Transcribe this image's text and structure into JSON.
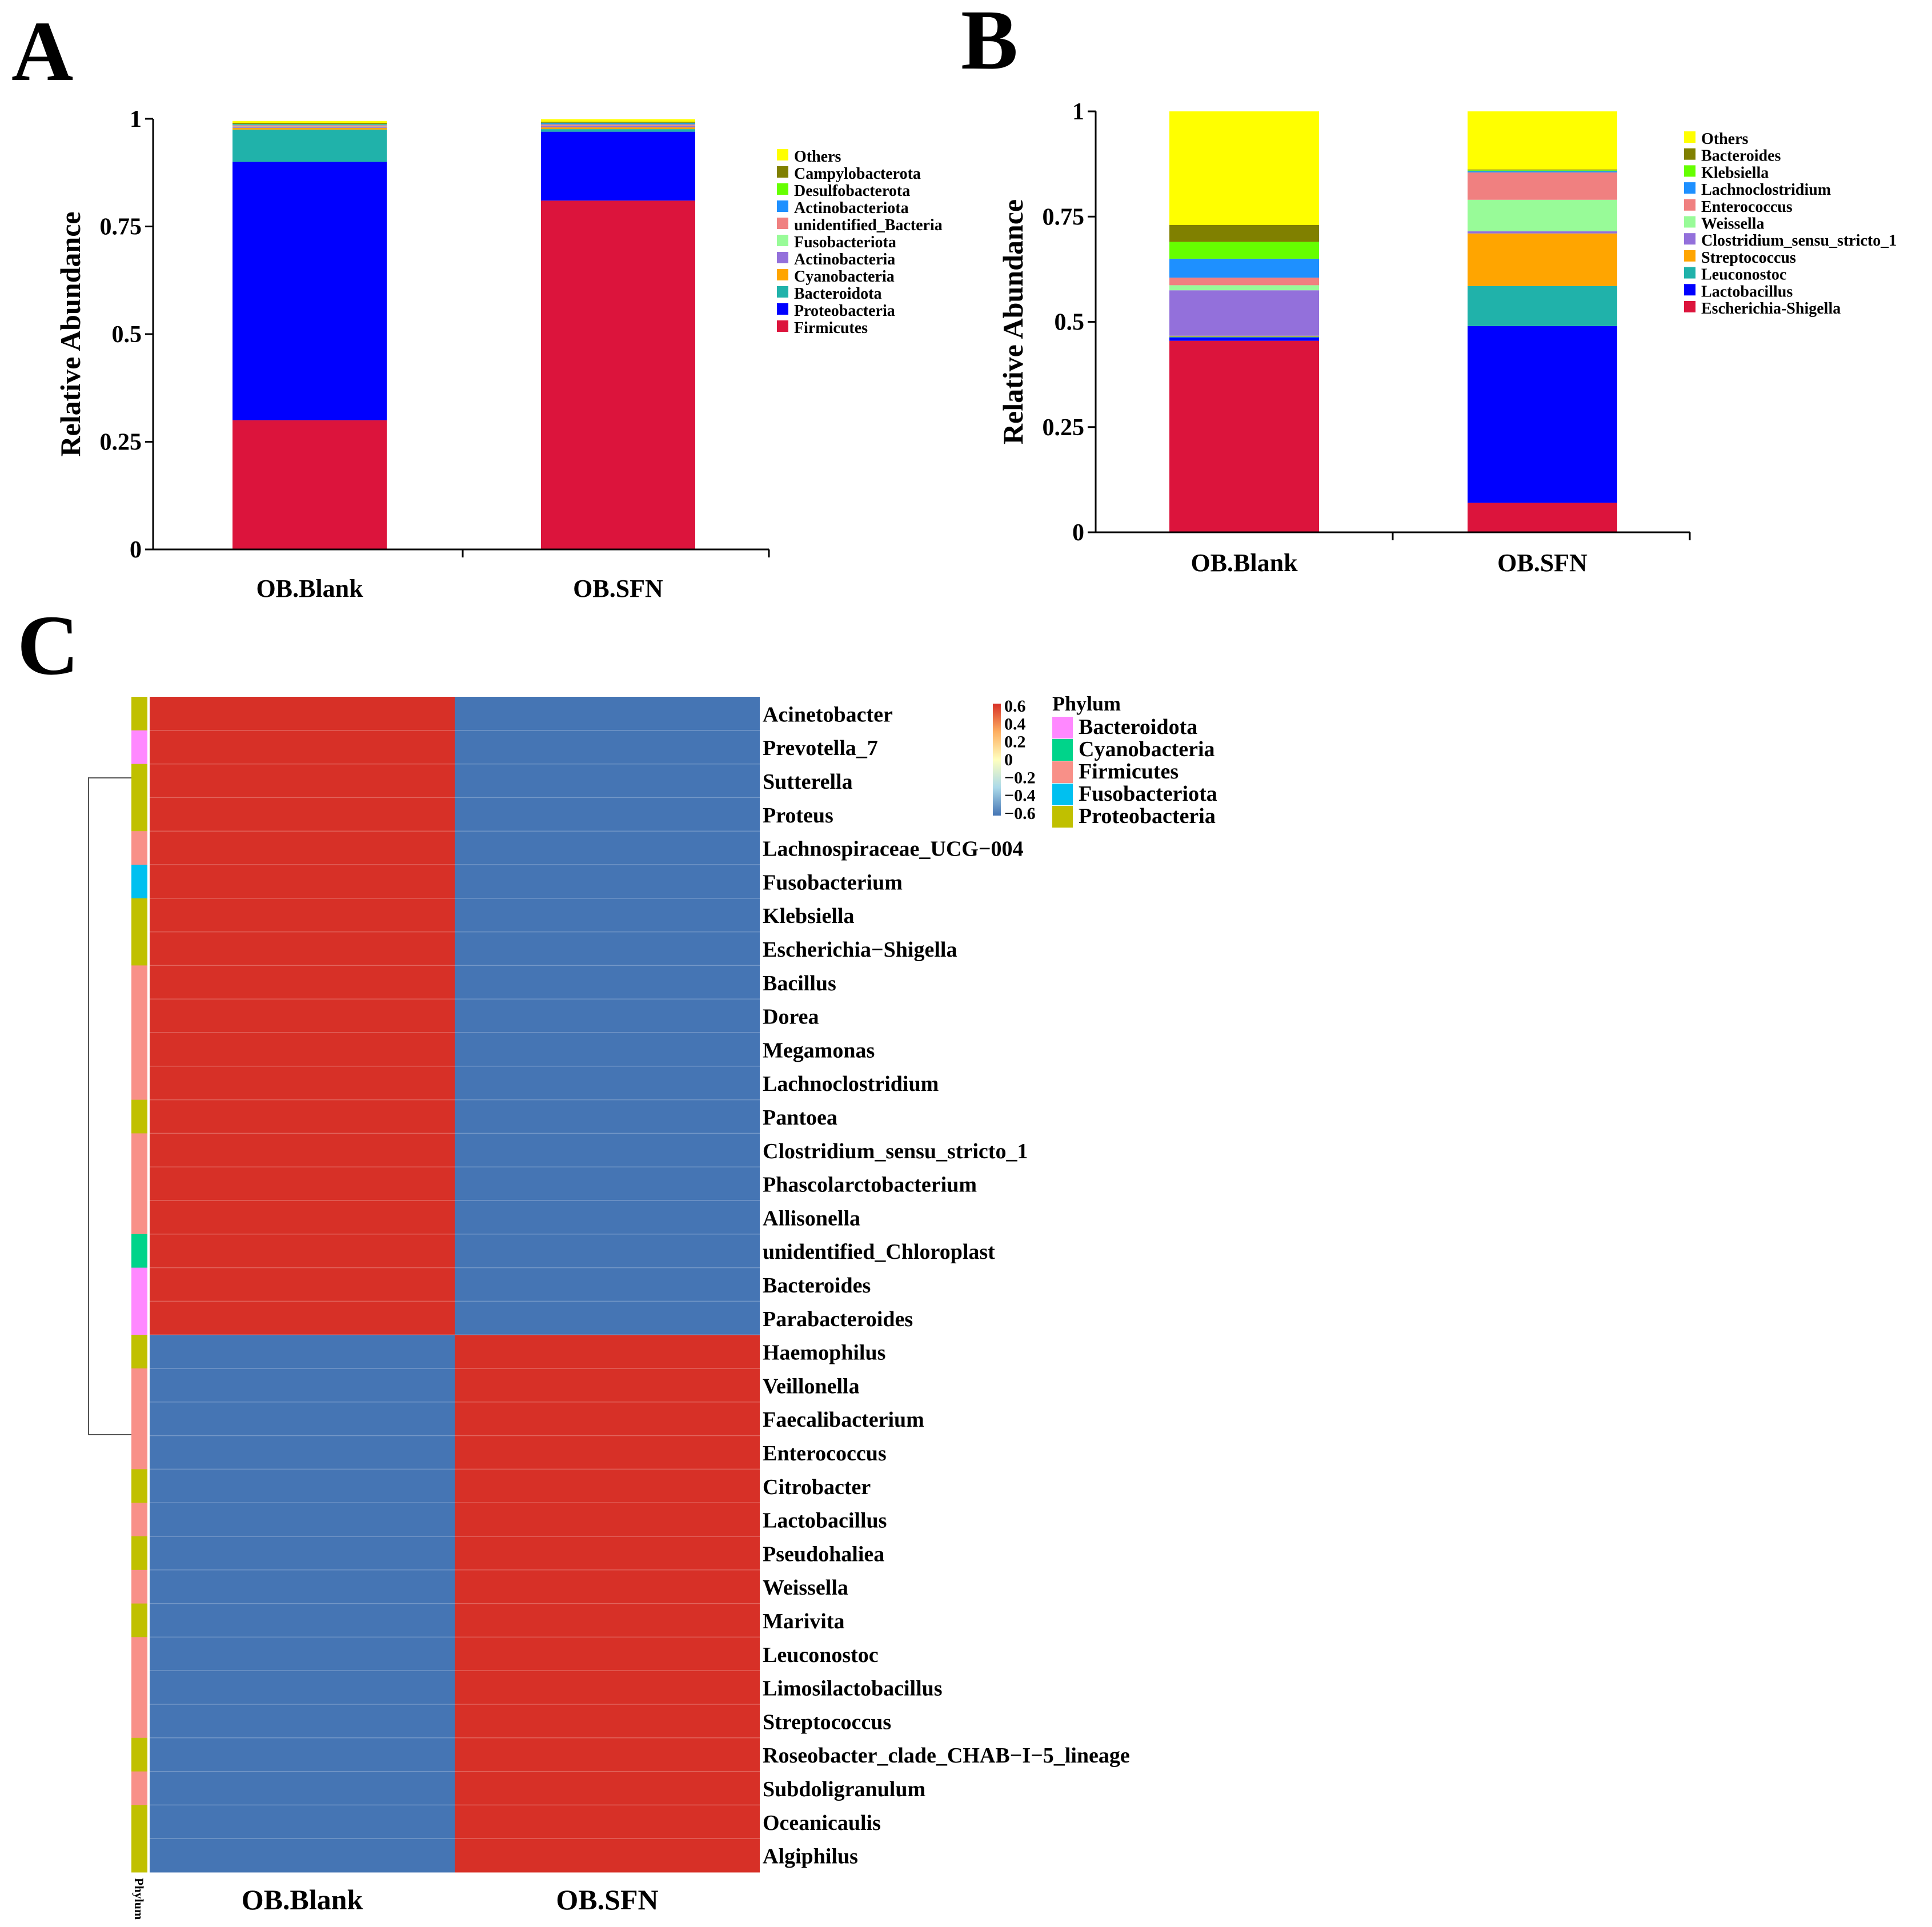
{
  "colors": {
    "Others": "#ffff00",
    "Campylobacterota": "#808000",
    "Desulfobacterota": "#66ff00",
    "Actinobacteriota": "#1e90ff",
    "unidentified_Bacteria": "#f08080",
    "Fusobacteriota": "#98fb98",
    "Actinobacteria": "#9370db",
    "Cyanobacteria": "#ffa500",
    "Bacteroidota": "#20b2aa",
    "Proteobacteria": "#0000ff",
    "Firmicutes": "#dc143c",
    "Bacteroides": "#808000",
    "Klebsiella": "#66ff00",
    "Lachnoclostridium": "#1e90ff",
    "Enterococcus": "#f08080",
    "Weissella": "#98fb98",
    "Clostridium_sensu_stricto_1": "#9370db",
    "Streptococcus": "#ffa500",
    "Leuconostoc": "#20b2aa",
    "Lactobacillus": "#0000ff",
    "Escherichia-Shigella": "#dc143c",
    "heat_high": "#d73027",
    "heat_low": "#4575b4",
    "phylum_Bacteroidota": "#ff88ff",
    "phylum_Cyanobacteria": "#00d48a",
    "phylum_Firmicutes": "#f89088",
    "phylum_Fusobacteriota": "#00c0f0",
    "phylum_Proteobacteria": "#c0c000"
  },
  "chart_data": [
    {
      "panel": "A",
      "type": "bar",
      "stacked": true,
      "categories": [
        "OB.Blank",
        "OB.SFN"
      ],
      "ylabel": "Relative Abundance",
      "ylim": [
        0,
        1
      ],
      "yticks": [
        "0",
        "0.25",
        "0.5",
        "0.75",
        "1"
      ],
      "legend_position": "right",
      "legend_order": [
        "Others",
        "Campylobacterota",
        "Desulfobacterota",
        "Actinobacteriota",
        "unidentified_Bacteria",
        "Fusobacteriota",
        "Actinobacteria",
        "Cyanobacteria",
        "Bacteroidota",
        "Proteobacteria",
        "Firmicutes"
      ],
      "series": [
        {
          "name": "Firmicutes",
          "values": [
            0.3,
            0.81
          ]
        },
        {
          "name": "Proteobacteria",
          "values": [
            0.6,
            0.16
          ]
        },
        {
          "name": "Bacteroidota",
          "values": [
            0.075,
            0.006
          ]
        },
        {
          "name": "Cyanobacteria",
          "values": [
            0.004,
            0.004
          ]
        },
        {
          "name": "Actinobacteria",
          "values": [
            0.002,
            0.003
          ]
        },
        {
          "name": "Fusobacteriota",
          "values": [
            0.001,
            0.001
          ]
        },
        {
          "name": "unidentified_Bacteria",
          "values": [
            0.003,
            0.003
          ]
        },
        {
          "name": "Actinobacteriota",
          "values": [
            0.002,
            0.003
          ]
        },
        {
          "name": "Desulfobacterota",
          "values": [
            0.001,
            0.001
          ]
        },
        {
          "name": "Campylobacterota",
          "values": [
            0.002,
            0.002
          ]
        },
        {
          "name": "Others",
          "values": [
            0.005,
            0.006
          ]
        }
      ]
    },
    {
      "panel": "B",
      "type": "bar",
      "stacked": true,
      "categories": [
        "OB.Blank",
        "OB.SFN"
      ],
      "ylabel": "Relative Abundance",
      "ylim": [
        0,
        1
      ],
      "yticks": [
        "0",
        "0.25",
        "0.5",
        "0.75",
        "1"
      ],
      "legend_position": "right",
      "legend_order": [
        "Others",
        "Bacteroides",
        "Klebsiella",
        "Lachnoclostridium",
        "Enterococcus",
        "Weissella",
        "Clostridium_sensu_stricto_1",
        "Streptococcus",
        "Leuconostoc",
        "Lactobacillus",
        "Escherichia-Shigella"
      ],
      "series": [
        {
          "name": "Escherichia-Shigella",
          "values": [
            0.455,
            0.07
          ]
        },
        {
          "name": "Lactobacillus",
          "values": [
            0.008,
            0.42
          ]
        },
        {
          "name": "Leuconostoc",
          "values": [
            0.002,
            0.095
          ]
        },
        {
          "name": "Streptococcus",
          "values": [
            0.002,
            0.125
          ]
        },
        {
          "name": "Clostridium_sensu_stricto_1",
          "values": [
            0.108,
            0.005
          ]
        },
        {
          "name": "Weissella",
          "values": [
            0.012,
            0.075
          ]
        },
        {
          "name": "Enterococcus",
          "values": [
            0.018,
            0.065
          ]
        },
        {
          "name": "Lachnoclostridium",
          "values": [
            0.045,
            0.003
          ]
        },
        {
          "name": "Klebsiella",
          "values": [
            0.04,
            0.002
          ]
        },
        {
          "name": "Bacteroides",
          "values": [
            0.04,
            0.002
          ]
        },
        {
          "name": "Others",
          "values": [
            0.27,
            0.138
          ]
        }
      ]
    },
    {
      "panel": "C",
      "type": "heatmap",
      "columns": [
        "OB.Blank",
        "OB.SFN"
      ],
      "rows": [
        {
          "name": "Acinetobacter",
          "phylum": "Proteobacteria",
          "values": [
            0.707,
            -0.707
          ]
        },
        {
          "name": "Prevotella_7",
          "phylum": "Bacteroidota",
          "values": [
            0.707,
            -0.707
          ]
        },
        {
          "name": "Sutterella",
          "phylum": "Proteobacteria",
          "values": [
            0.707,
            -0.707
          ]
        },
        {
          "name": "Proteus",
          "phylum": "Proteobacteria",
          "values": [
            0.707,
            -0.707
          ]
        },
        {
          "name": "Lachnospiraceae_UCG−004",
          "phylum": "Firmicutes",
          "values": [
            0.707,
            -0.707
          ]
        },
        {
          "name": "Fusobacterium",
          "phylum": "Fusobacteriota",
          "values": [
            0.707,
            -0.707
          ]
        },
        {
          "name": "Klebsiella",
          "phylum": "Proteobacteria",
          "values": [
            0.707,
            -0.707
          ]
        },
        {
          "name": "Escherichia−Shigella",
          "phylum": "Proteobacteria",
          "values": [
            0.707,
            -0.707
          ]
        },
        {
          "name": "Bacillus",
          "phylum": "Firmicutes",
          "values": [
            0.707,
            -0.707
          ]
        },
        {
          "name": "Dorea",
          "phylum": "Firmicutes",
          "values": [
            0.707,
            -0.707
          ]
        },
        {
          "name": "Megamonas",
          "phylum": "Firmicutes",
          "values": [
            0.707,
            -0.707
          ]
        },
        {
          "name": "Lachnoclostridium",
          "phylum": "Firmicutes",
          "values": [
            0.707,
            -0.707
          ]
        },
        {
          "name": "Pantoea",
          "phylum": "Proteobacteria",
          "values": [
            0.707,
            -0.707
          ]
        },
        {
          "name": "Clostridium_sensu_stricto_1",
          "phylum": "Firmicutes",
          "values": [
            0.707,
            -0.707
          ]
        },
        {
          "name": "Phascolarctobacterium",
          "phylum": "Firmicutes",
          "values": [
            0.707,
            -0.707
          ]
        },
        {
          "name": "Allisonella",
          "phylum": "Firmicutes",
          "values": [
            0.707,
            -0.707
          ]
        },
        {
          "name": "unidentified_Chloroplast",
          "phylum": "Cyanobacteria",
          "values": [
            0.707,
            -0.707
          ]
        },
        {
          "name": "Bacteroides",
          "phylum": "Bacteroidota",
          "values": [
            0.707,
            -0.707
          ]
        },
        {
          "name": "Parabacteroides",
          "phylum": "Bacteroidota",
          "values": [
            0.707,
            -0.707
          ]
        },
        {
          "name": "Haemophilus",
          "phylum": "Proteobacteria",
          "values": [
            -0.707,
            0.707
          ]
        },
        {
          "name": "Veillonella",
          "phylum": "Firmicutes",
          "values": [
            -0.707,
            0.707
          ]
        },
        {
          "name": "Faecalibacterium",
          "phylum": "Firmicutes",
          "values": [
            -0.707,
            0.707
          ]
        },
        {
          "name": "Enterococcus",
          "phylum": "Firmicutes",
          "values": [
            -0.707,
            0.707
          ]
        },
        {
          "name": "Citrobacter",
          "phylum": "Proteobacteria",
          "values": [
            -0.707,
            0.707
          ]
        },
        {
          "name": "Lactobacillus",
          "phylum": "Firmicutes",
          "values": [
            -0.707,
            0.707
          ]
        },
        {
          "name": "Pseudohaliea",
          "phylum": "Proteobacteria",
          "values": [
            -0.707,
            0.707
          ]
        },
        {
          "name": "Weissella",
          "phylum": "Firmicutes",
          "values": [
            -0.707,
            0.707
          ]
        },
        {
          "name": "Marivita",
          "phylum": "Proteobacteria",
          "values": [
            -0.707,
            0.707
          ]
        },
        {
          "name": "Leuconostoc",
          "phylum": "Firmicutes",
          "values": [
            -0.707,
            0.707
          ]
        },
        {
          "name": "Limosilactobacillus",
          "phylum": "Firmicutes",
          "values": [
            -0.707,
            0.707
          ]
        },
        {
          "name": "Streptococcus",
          "phylum": "Firmicutes",
          "values": [
            -0.707,
            0.707
          ]
        },
        {
          "name": "Roseobacter_clade_CHAB−I−5_lineage",
          "phylum": "Proteobacteria",
          "values": [
            -0.707,
            0.707
          ]
        },
        {
          "name": "Subdoligranulum",
          "phylum": "Firmicutes",
          "values": [
            -0.707,
            0.707
          ]
        },
        {
          "name": "Oceanicaulis",
          "phylum": "Proteobacteria",
          "values": [
            -0.707,
            0.707
          ]
        },
        {
          "name": "Algiphilus",
          "phylum": "Proteobacteria",
          "values": [
            -0.707,
            0.707
          ]
        }
      ],
      "colorbar_ticks": [
        "0.6",
        "0.4",
        "0.2",
        "0",
        "−0.2",
        "−0.4",
        "−0.6"
      ],
      "phylum_legend_title": "Phylum",
      "phylum_legend": [
        "Bacteroidota",
        "Cyanobacteria",
        "Firmicutes",
        "Fusobacteriota",
        "Proteobacteria"
      ],
      "annotation_label": "Phylum"
    }
  ],
  "panel_letters": [
    "A",
    "B",
    "C"
  ]
}
